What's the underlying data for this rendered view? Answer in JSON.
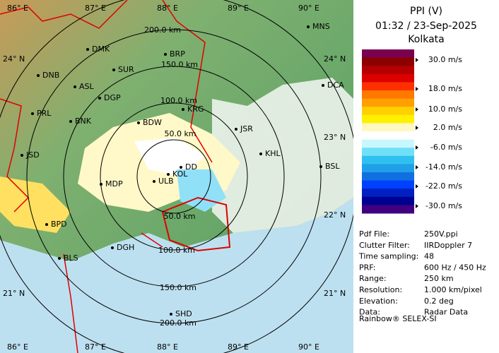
{
  "header": {
    "title": "PPI (V)",
    "time": "01:32 / 23-Sep-2025",
    "station": "Kolkata"
  },
  "colorbar": {
    "colors": [
      "#7a0050",
      "#8c0000",
      "#b40000",
      "#dc0000",
      "#ff3000",
      "#ff7800",
      "#ffa000",
      "#ffd000",
      "#fff000",
      "#fff8c0",
      "#ffffff",
      "#c8f8ff",
      "#70e0f8",
      "#30c0f0",
      "#20a0e8",
      "#1070e0",
      "#0040ff",
      "#0020c0",
      "#000090",
      "#400080"
    ],
    "labels": [
      "30.0 m/s",
      "18.0 m/s",
      "10.0 m/s",
      "2.0 m/s",
      "-6.0 m/s",
      "-14.0 m/s",
      "-22.0 m/s",
      "-30.0 m/s"
    ]
  },
  "info": [
    [
      "Pdf File:",
      "250V.ppi"
    ],
    [
      "Clutter Filter:",
      "IIRDoppler 7"
    ],
    [
      "Time sampling:",
      "48"
    ],
    [
      "PRF:",
      "600 Hz / 450 Hz"
    ],
    [
      "Range:",
      "250 km"
    ],
    [
      "Resolution:",
      "1.000 km/pixel"
    ],
    [
      "Elevation:",
      "0.2 deg"
    ],
    [
      "Data:",
      "Radar Data"
    ]
  ],
  "footer": "Rainbow® SELEX-SI",
  "map": {
    "lon_labels": [
      "86° E",
      "87° E",
      "88° E",
      "89° E",
      "90° E"
    ],
    "lat_labels_left": [
      "24° N",
      "21° N"
    ],
    "lat_labels_right": [
      "24° N",
      "23° N",
      "22° N",
      "21° N"
    ],
    "ring_labels": [
      "200.0 km",
      "150.0 km",
      "100.0 km",
      "50.0 km",
      "50.0 km",
      "100.0 km",
      "150.0 km",
      "200.0 km"
    ],
    "stations": [
      "MNS",
      "DMK",
      "BRP",
      "SUR",
      "DNB",
      "ASL",
      "DGP",
      "DCA",
      "KRG",
      "PRL",
      "BNK",
      "BDW",
      "JSR",
      "KHL",
      "JSD",
      "DD",
      "KOL",
      "ULB",
      "MDP",
      "BSL",
      "BPD",
      "DGH",
      "BLS",
      "SHD"
    ]
  }
}
